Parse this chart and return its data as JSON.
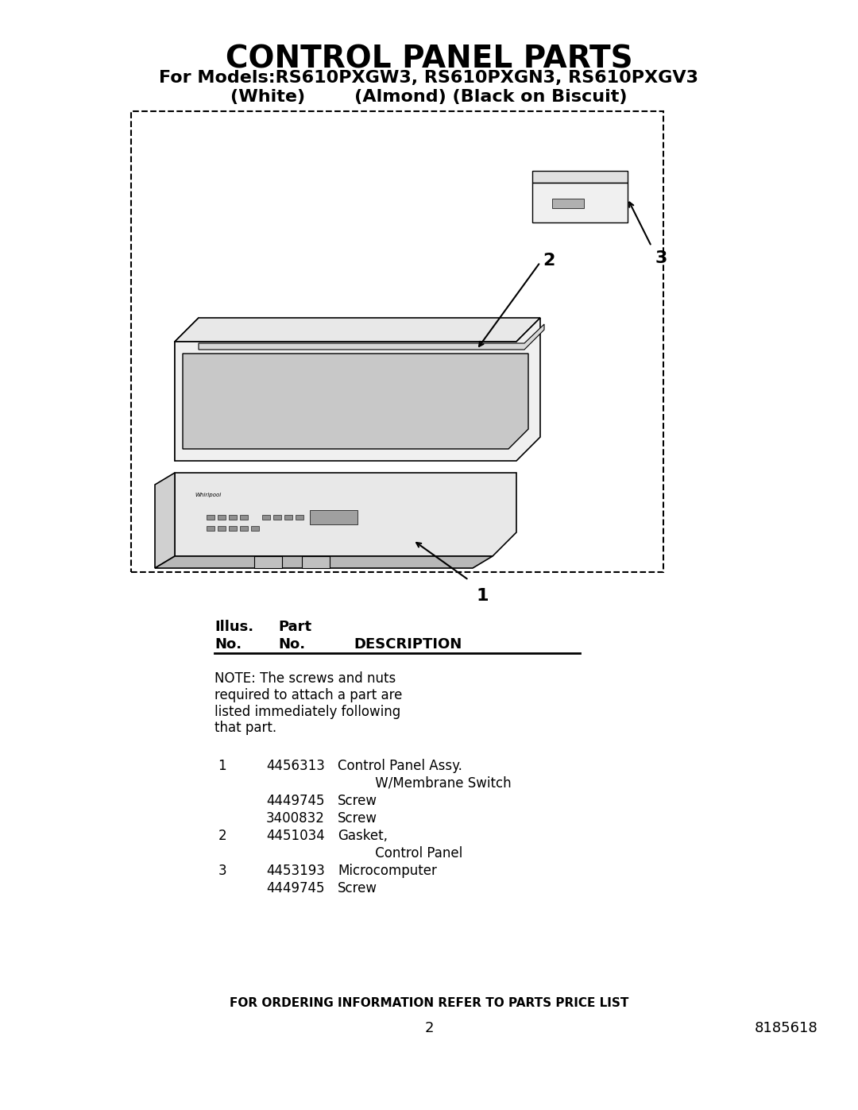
{
  "title": "CONTROL PANEL PARTS",
  "subtitle_line1": "For Models:RS610PXGW3, RS610PXGN3, RS610PXGV3",
  "subtitle_line2": "(White)        (Almond) (Black on Biscuit)",
  "bg_color": "#ffffff",
  "text_color": "#000000",
  "header_col1": "Illus.",
  "header_col2": "Part",
  "header_col3": "",
  "header_row2_col1": "No.",
  "header_row2_col2": "No.",
  "header_row2_col3": "DESCRIPTION",
  "note": "NOTE: The screws and nuts\nrequired to attach a part are\nlisted immediately following\nthat part.",
  "parts": [
    {
      "illus": "1",
      "part": "4456313",
      "desc": "Control Panel Assy.\n         W/Membrane Switch"
    },
    {
      "illus": "",
      "part": "4449745",
      "desc": "Screw"
    },
    {
      "illus": "",
      "part": "3400832",
      "desc": "Screw"
    },
    {
      "illus": "2",
      "part": "4451034",
      "desc": "Gasket,\n         Control Panel"
    },
    {
      "illus": "3",
      "part": "4453193",
      "desc": "Microcomputer"
    },
    {
      "illus": "",
      "part": "4449745",
      "desc": "Screw"
    }
  ],
  "footer_center": "FOR ORDERING INFORMATION REFER TO PARTS PRICE LIST",
  "footer_page": "2",
  "footer_part": "8185618"
}
